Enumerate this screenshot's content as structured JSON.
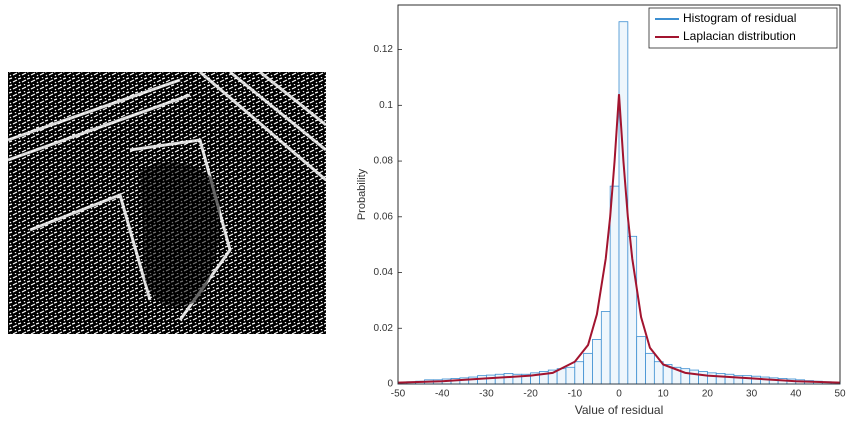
{
  "chart_data": {
    "type": "histogram",
    "xlabel": "Value of residual",
    "ylabel": "Probability",
    "bins": [
      -50,
      -48,
      -46,
      -44,
      -42,
      -40,
      -38,
      -36,
      -34,
      -32,
      -30,
      -28,
      -26,
      -24,
      -22,
      -20,
      -18,
      -16,
      -14,
      -12,
      -10,
      -8,
      -6,
      -4,
      -2,
      0,
      2,
      4,
      6,
      8,
      10,
      12,
      14,
      16,
      18,
      20,
      22,
      24,
      26,
      28,
      30,
      32,
      34,
      36,
      38,
      40,
      42,
      44,
      46,
      48,
      50
    ],
    "series": [
      {
        "name": "Histogram of residual",
        "type": "histogram",
        "color": "#3d8fd1",
        "values": [
          0.0005,
          0.0008,
          0.001,
          0.0015,
          0.0015,
          0.0018,
          0.002,
          0.0022,
          0.0025,
          0.003,
          0.0032,
          0.0035,
          0.0038,
          0.0035,
          0.0035,
          0.004,
          0.0045,
          0.005,
          0.0055,
          0.006,
          0.008,
          0.011,
          0.016,
          0.026,
          0.071,
          0.13,
          0.053,
          0.017,
          0.011,
          0.008,
          0.007,
          0.006,
          0.0055,
          0.005,
          0.0045,
          0.004,
          0.0038,
          0.0035,
          0.003,
          0.003,
          0.0028,
          0.0025,
          0.0022,
          0.002,
          0.0018,
          0.0015,
          0.0012,
          0.001,
          0.0008,
          0.0005
        ]
      },
      {
        "name": "Laplacian distribution",
        "type": "line",
        "color": "#a2142f",
        "x": [
          -50,
          -40,
          -30,
          -20,
          -15,
          -10,
          -7,
          -5,
          -3,
          -2,
          -1,
          0,
          1,
          2,
          3,
          5,
          7,
          10,
          15,
          20,
          30,
          40,
          50
        ],
        "values": [
          0.0005,
          0.001,
          0.002,
          0.003,
          0.004,
          0.008,
          0.014,
          0.025,
          0.045,
          0.06,
          0.08,
          0.104,
          0.08,
          0.06,
          0.045,
          0.024,
          0.013,
          0.007,
          0.004,
          0.003,
          0.002,
          0.001,
          0.0005
        ]
      }
    ],
    "xlim": [
      -50,
      50
    ],
    "ylim": [
      0,
      0.136
    ],
    "xticks": [
      -50,
      -40,
      -30,
      -20,
      -10,
      0,
      10,
      20,
      30,
      40,
      50
    ],
    "yticks": [
      0,
      0.02,
      0.04,
      0.06,
      0.08,
      0.1,
      0.12
    ],
    "legend": "upper right"
  }
}
